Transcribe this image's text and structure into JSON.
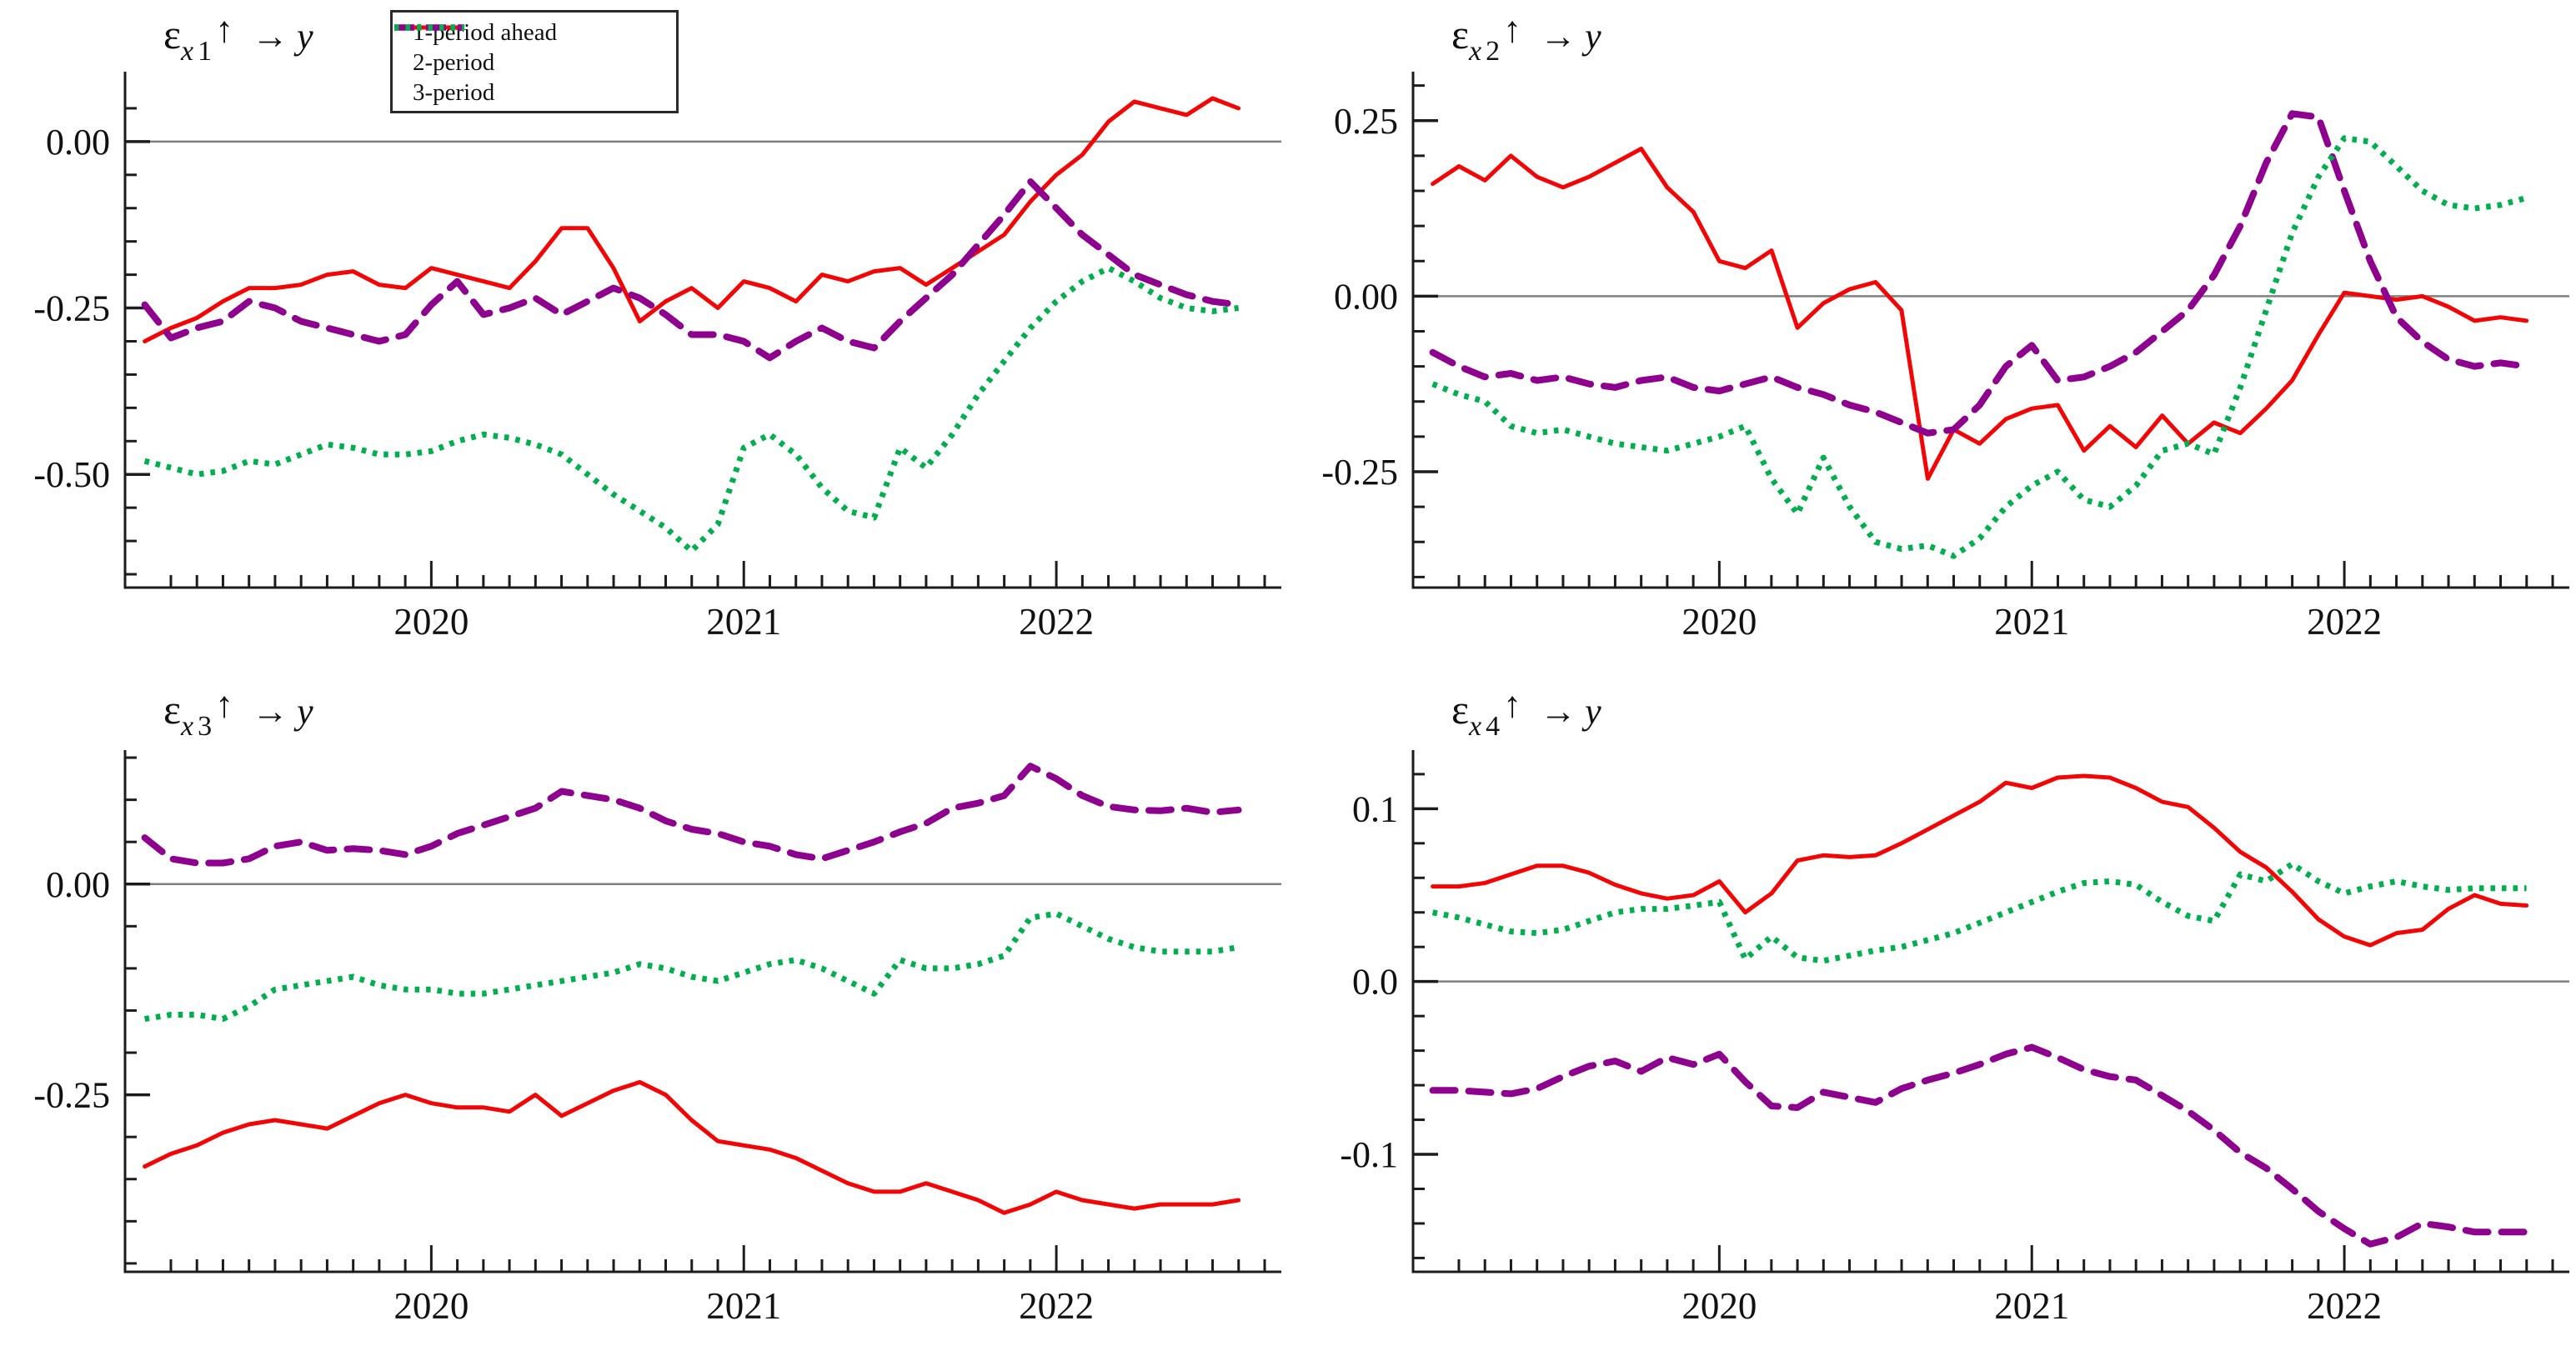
{
  "figure_title": "",
  "accent_colors": {
    "red": "#f40505",
    "purple": "#8e008e",
    "green": "#00ae4e",
    "zero_line": "#7f7f7f",
    "axis": "#1c1c1c"
  },
  "legend": {
    "items": [
      {
        "label": "1-period ahead",
        "color": "#f40505",
        "pattern": "solid"
      },
      {
        "label": "2-period",
        "color": "#8e008e",
        "pattern": "dashed"
      },
      {
        "label": "3-period",
        "color": "#00ae4e",
        "pattern": "dotted"
      }
    ]
  },
  "x_axis": {
    "range": [
      2019.02,
      2022.72
    ],
    "major": [
      {
        "v": 2020,
        "label": "2020"
      },
      {
        "v": 2021,
        "label": "2021"
      },
      {
        "v": 2022,
        "label": "2022"
      }
    ],
    "minor_step_months": 1,
    "data_start": 2019.083,
    "data_end": 2022.583
  },
  "chart_data": [
    {
      "type": "line",
      "title": {
        "eps": "ε",
        "sub_x": "x",
        "sub_n": "1",
        "up": "↑",
        "to": "→",
        "var": "y"
      },
      "ylim": [
        -0.67,
        0.1
      ],
      "y_minor_step": 0.05,
      "y_major": [
        {
          "v": 0.0,
          "label": "0.00"
        },
        {
          "v": -0.25,
          "label": "-0.25"
        },
        {
          "v": -0.5,
          "label": "-0.50"
        }
      ],
      "x": [
        2019.083,
        2019.167,
        2019.25,
        2019.333,
        2019.417,
        2019.5,
        2019.583,
        2019.667,
        2019.75,
        2019.833,
        2019.917,
        2020.0,
        2020.083,
        2020.167,
        2020.25,
        2020.333,
        2020.417,
        2020.5,
        2020.583,
        2020.667,
        2020.75,
        2020.833,
        2020.917,
        2021.0,
        2021.083,
        2021.167,
        2021.25,
        2021.333,
        2021.417,
        2021.5,
        2021.583,
        2021.667,
        2021.75,
        2021.833,
        2021.917,
        2022.0,
        2022.083,
        2022.167,
        2022.25,
        2022.333,
        2022.417,
        2022.5,
        2022.583
      ],
      "series": [
        {
          "name": "1-period ahead",
          "color": "#f40505",
          "pattern": "solid",
          "values": [
            -0.3,
            -0.28,
            -0.265,
            -0.24,
            -0.22,
            -0.22,
            -0.215,
            -0.2,
            -0.195,
            -0.215,
            -0.22,
            -0.19,
            -0.2,
            -0.21,
            -0.22,
            -0.18,
            -0.13,
            -0.13,
            -0.19,
            -0.27,
            -0.24,
            -0.22,
            -0.25,
            -0.21,
            -0.22,
            -0.24,
            -0.2,
            -0.21,
            -0.195,
            -0.19,
            -0.215,
            -0.19,
            -0.165,
            -0.14,
            -0.09,
            -0.05,
            -0.02,
            0.03,
            0.06,
            0.05,
            0.04,
            0.065,
            0.05
          ]
        },
        {
          "name": "2-period",
          "color": "#8e008e",
          "pattern": "dashed",
          "values": [
            -0.245,
            -0.295,
            -0.28,
            -0.27,
            -0.24,
            -0.25,
            -0.27,
            -0.28,
            -0.29,
            -0.3,
            -0.29,
            -0.245,
            -0.21,
            -0.26,
            -0.25,
            -0.235,
            -0.26,
            -0.24,
            -0.22,
            -0.235,
            -0.26,
            -0.29,
            -0.29,
            -0.3,
            -0.325,
            -0.3,
            -0.28,
            -0.3,
            -0.31,
            -0.27,
            -0.235,
            -0.2,
            -0.155,
            -0.11,
            -0.06,
            -0.1,
            -0.14,
            -0.17,
            -0.2,
            -0.215,
            -0.23,
            -0.24,
            -0.245
          ]
        },
        {
          "name": "3-period",
          "color": "#00ae4e",
          "pattern": "dotted",
          "values": [
            -0.48,
            -0.49,
            -0.5,
            -0.495,
            -0.48,
            -0.485,
            -0.47,
            -0.455,
            -0.46,
            -0.47,
            -0.47,
            -0.465,
            -0.45,
            -0.44,
            -0.445,
            -0.455,
            -0.47,
            -0.5,
            -0.53,
            -0.555,
            -0.58,
            -0.615,
            -0.575,
            -0.46,
            -0.44,
            -0.47,
            -0.52,
            -0.555,
            -0.565,
            -0.46,
            -0.49,
            -0.44,
            -0.38,
            -0.33,
            -0.28,
            -0.24,
            -0.21,
            -0.19,
            -0.21,
            -0.235,
            -0.25,
            -0.255,
            -0.25
          ]
        }
      ]
    },
    {
      "type": "line",
      "title": {
        "eps": "ε",
        "sub_x": "x",
        "sub_n": "2",
        "up": "↑",
        "to": "→",
        "var": "y"
      },
      "ylim": [
        -0.415,
        0.315
      ],
      "y_minor_step": 0.05,
      "y_major": [
        {
          "v": 0.25,
          "label": "0.25"
        },
        {
          "v": 0.0,
          "label": "0.00"
        },
        {
          "v": -0.25,
          "label": "-0.25"
        }
      ],
      "x": [
        2019.083,
        2019.167,
        2019.25,
        2019.333,
        2019.417,
        2019.5,
        2019.583,
        2019.667,
        2019.75,
        2019.833,
        2019.917,
        2020.0,
        2020.083,
        2020.167,
        2020.25,
        2020.333,
        2020.417,
        2020.5,
        2020.583,
        2020.667,
        2020.75,
        2020.833,
        2020.917,
        2021.0,
        2021.083,
        2021.167,
        2021.25,
        2021.333,
        2021.417,
        2021.5,
        2021.583,
        2021.667,
        2021.75,
        2021.833,
        2021.917,
        2022.0,
        2022.083,
        2022.167,
        2022.25,
        2022.333,
        2022.417,
        2022.5,
        2022.583
      ],
      "series": [
        {
          "name": "1-period ahead",
          "color": "#f40505",
          "pattern": "solid",
          "values": [
            0.16,
            0.185,
            0.165,
            0.2,
            0.17,
            0.155,
            0.17,
            0.19,
            0.21,
            0.155,
            0.12,
            0.05,
            0.04,
            0.065,
            -0.045,
            -0.01,
            0.01,
            0.02,
            -0.02,
            -0.26,
            -0.19,
            -0.21,
            -0.175,
            -0.16,
            -0.155,
            -0.22,
            -0.185,
            -0.215,
            -0.17,
            -0.21,
            -0.18,
            -0.195,
            -0.16,
            -0.12,
            -0.055,
            0.005,
            0.0,
            -0.005,
            0.0,
            -0.015,
            -0.035,
            -0.03,
            -0.035
          ]
        },
        {
          "name": "2-period",
          "color": "#8e008e",
          "pattern": "dashed",
          "values": [
            -0.08,
            -0.1,
            -0.115,
            -0.11,
            -0.12,
            -0.115,
            -0.125,
            -0.13,
            -0.12,
            -0.115,
            -0.13,
            -0.135,
            -0.125,
            -0.115,
            -0.13,
            -0.14,
            -0.155,
            -0.165,
            -0.18,
            -0.195,
            -0.19,
            -0.155,
            -0.1,
            -0.07,
            -0.12,
            -0.115,
            -0.1,
            -0.08,
            -0.05,
            -0.02,
            0.03,
            0.1,
            0.19,
            0.26,
            0.255,
            0.15,
            0.05,
            -0.03,
            -0.065,
            -0.09,
            -0.1,
            -0.095,
            -0.1
          ]
        },
        {
          "name": "3-period",
          "color": "#00ae4e",
          "pattern": "dotted",
          "values": [
            -0.125,
            -0.14,
            -0.15,
            -0.185,
            -0.195,
            -0.19,
            -0.2,
            -0.21,
            -0.215,
            -0.22,
            -0.21,
            -0.2,
            -0.185,
            -0.26,
            -0.31,
            -0.23,
            -0.3,
            -0.35,
            -0.36,
            -0.355,
            -0.37,
            -0.345,
            -0.3,
            -0.27,
            -0.25,
            -0.29,
            -0.3,
            -0.27,
            -0.22,
            -0.21,
            -0.225,
            -0.13,
            -0.02,
            0.09,
            0.17,
            0.225,
            0.22,
            0.185,
            0.15,
            0.13,
            0.125,
            0.13,
            0.14
          ]
        }
      ]
    },
    {
      "type": "line",
      "title": {
        "eps": "ε",
        "sub_x": "x",
        "sub_n": "3",
        "up": "↑",
        "to": "→",
        "var": "y"
      },
      "ylim": [
        -0.46,
        0.155
      ],
      "y_minor_step": 0.05,
      "y_major": [
        {
          "v": 0.0,
          "label": "0.00"
        },
        {
          "v": -0.25,
          "label": "-0.25"
        }
      ],
      "x": [
        2019.083,
        2019.167,
        2019.25,
        2019.333,
        2019.417,
        2019.5,
        2019.583,
        2019.667,
        2019.75,
        2019.833,
        2019.917,
        2020.0,
        2020.083,
        2020.167,
        2020.25,
        2020.333,
        2020.417,
        2020.5,
        2020.583,
        2020.667,
        2020.75,
        2020.833,
        2020.917,
        2021.0,
        2021.083,
        2021.167,
        2021.25,
        2021.333,
        2021.417,
        2021.5,
        2021.583,
        2021.667,
        2021.75,
        2021.833,
        2021.917,
        2022.0,
        2022.083,
        2022.167,
        2022.25,
        2022.333,
        2022.417,
        2022.5,
        2022.583
      ],
      "series": [
        {
          "name": "1-period ahead",
          "color": "#f40505",
          "pattern": "solid",
          "values": [
            -0.335,
            -0.32,
            -0.31,
            -0.295,
            -0.285,
            -0.28,
            -0.285,
            -0.29,
            -0.275,
            -0.26,
            -0.25,
            -0.26,
            -0.265,
            -0.265,
            -0.27,
            -0.25,
            -0.275,
            -0.26,
            -0.245,
            -0.235,
            -0.25,
            -0.28,
            -0.305,
            -0.31,
            -0.315,
            -0.325,
            -0.34,
            -0.355,
            -0.365,
            -0.365,
            -0.355,
            -0.365,
            -0.375,
            -0.39,
            -0.38,
            -0.365,
            -0.375,
            -0.38,
            -0.385,
            -0.38,
            -0.38,
            -0.38,
            -0.375
          ]
        },
        {
          "name": "2-period",
          "color": "#8e008e",
          "pattern": "dashed",
          "values": [
            0.055,
            0.03,
            0.025,
            0.025,
            0.03,
            0.045,
            0.05,
            0.04,
            0.042,
            0.04,
            0.035,
            0.045,
            0.06,
            0.07,
            0.08,
            0.09,
            0.11,
            0.105,
            0.1,
            0.09,
            0.075,
            0.065,
            0.06,
            0.05,
            0.045,
            0.035,
            0.03,
            0.04,
            0.05,
            0.062,
            0.072,
            0.09,
            0.096,
            0.105,
            0.14,
            0.125,
            0.105,
            0.092,
            0.088,
            0.087,
            0.09,
            0.085,
            0.088
          ]
        },
        {
          "name": "3-period",
          "color": "#00ae4e",
          "pattern": "dotted",
          "values": [
            -0.16,
            -0.155,
            -0.155,
            -0.16,
            -0.145,
            -0.125,
            -0.12,
            -0.115,
            -0.11,
            -0.12,
            -0.125,
            -0.125,
            -0.13,
            -0.13,
            -0.125,
            -0.12,
            -0.115,
            -0.11,
            -0.105,
            -0.095,
            -0.1,
            -0.11,
            -0.115,
            -0.105,
            -0.095,
            -0.09,
            -0.1,
            -0.115,
            -0.13,
            -0.09,
            -0.1,
            -0.1,
            -0.095,
            -0.085,
            -0.04,
            -0.035,
            -0.05,
            -0.065,
            -0.075,
            -0.08,
            -0.08,
            -0.08,
            -0.075
          ]
        }
      ]
    },
    {
      "type": "line",
      "title": {
        "eps": "ε",
        "sub_x": "x",
        "sub_n": "4",
        "up": "↑",
        "to": "→",
        "var": "y"
      },
      "ylim": [
        -0.168,
        0.132
      ],
      "y_minor_step": 0.02,
      "y_major": [
        {
          "v": 0.1,
          "label": "0.1"
        },
        {
          "v": 0.0,
          "label": "0.0"
        },
        {
          "v": -0.1,
          "label": "-0.1"
        }
      ],
      "x": [
        2019.083,
        2019.167,
        2019.25,
        2019.333,
        2019.417,
        2019.5,
        2019.583,
        2019.667,
        2019.75,
        2019.833,
        2019.917,
        2020.0,
        2020.083,
        2020.167,
        2020.25,
        2020.333,
        2020.417,
        2020.5,
        2020.583,
        2020.667,
        2020.75,
        2020.833,
        2020.917,
        2021.0,
        2021.083,
        2021.167,
        2021.25,
        2021.333,
        2021.417,
        2021.5,
        2021.583,
        2021.667,
        2021.75,
        2021.833,
        2021.917,
        2022.0,
        2022.083,
        2022.167,
        2022.25,
        2022.333,
        2022.417,
        2022.5,
        2022.583
      ],
      "series": [
        {
          "name": "1-period ahead",
          "color": "#f40505",
          "pattern": "solid",
          "values": [
            0.055,
            0.055,
            0.057,
            0.062,
            0.067,
            0.067,
            0.063,
            0.056,
            0.051,
            0.048,
            0.05,
            0.058,
            0.04,
            0.051,
            0.07,
            0.073,
            0.072,
            0.073,
            0.08,
            0.088,
            0.096,
            0.104,
            0.115,
            0.112,
            0.118,
            0.119,
            0.118,
            0.112,
            0.104,
            0.101,
            0.089,
            0.075,
            0.066,
            0.052,
            0.036,
            0.026,
            0.021,
            0.028,
            0.03,
            0.042,
            0.05,
            0.045,
            0.044
          ]
        },
        {
          "name": "2-period",
          "color": "#8e008e",
          "pattern": "dashed",
          "values": [
            -0.063,
            -0.063,
            -0.064,
            -0.065,
            -0.062,
            -0.055,
            -0.049,
            -0.046,
            -0.052,
            -0.044,
            -0.048,
            -0.042,
            -0.058,
            -0.072,
            -0.073,
            -0.064,
            -0.067,
            -0.07,
            -0.062,
            -0.057,
            -0.053,
            -0.048,
            -0.042,
            -0.038,
            -0.044,
            -0.051,
            -0.055,
            -0.057,
            -0.066,
            -0.075,
            -0.086,
            -0.099,
            -0.108,
            -0.12,
            -0.133,
            -0.143,
            -0.152,
            -0.148,
            -0.14,
            -0.142,
            -0.145,
            -0.145,
            -0.145
          ]
        },
        {
          "name": "3-period",
          "color": "#00ae4e",
          "pattern": "dotted",
          "values": [
            0.04,
            0.037,
            0.033,
            0.029,
            0.028,
            0.03,
            0.035,
            0.04,
            0.042,
            0.042,
            0.044,
            0.046,
            0.013,
            0.026,
            0.014,
            0.012,
            0.015,
            0.018,
            0.02,
            0.024,
            0.028,
            0.034,
            0.04,
            0.046,
            0.052,
            0.057,
            0.058,
            0.056,
            0.046,
            0.038,
            0.035,
            0.062,
            0.058,
            0.068,
            0.058,
            0.051,
            0.055,
            0.058,
            0.055,
            0.053,
            0.054,
            0.054,
            0.054
          ]
        }
      ]
    }
  ]
}
